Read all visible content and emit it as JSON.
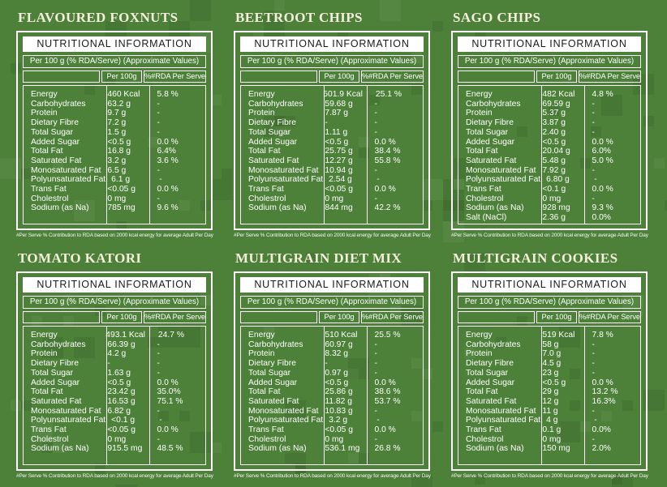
{
  "colors": {
    "background": "#4d8038",
    "panel_border": "#ffffff",
    "header_bg": "#ffffff",
    "header_text": "#1a1a1a",
    "body_text": "#ffffff",
    "title_text": "#f4efdc"
  },
  "shared": {
    "header": "NUTRITIONAL INFORMATION",
    "subheader": "Per 100 g (% RDA/Serve) (Approximate Values)",
    "col_per100g": "Per 100g",
    "col_rda": "%#RDA Per Serve",
    "footnote": "#Per Serve % Contribution to RDA based on 2000 kcal energy for average Adult Per Day"
  },
  "products": [
    {
      "title": "FLAVOURED FOXNUTS",
      "rows": [
        [
          "Energy",
          "460 Kcal",
          "5.8 %"
        ],
        [
          "Carbohydrates",
          "63.2 g",
          "-"
        ],
        [
          "Protein",
          "9.7 g",
          "-"
        ],
        [
          "Dietary Fibre",
          "7.2 g",
          "-"
        ],
        [
          "Total Sugar",
          "1.5 g",
          "-"
        ],
        [
          "Added Sugar",
          "<0.5 g",
          "0.0 %"
        ],
        [
          "Total Fat",
          "16.8 g",
          "6.4%"
        ],
        [
          "Saturated Fat",
          "3.2 g",
          "3.6 %"
        ],
        [
          "Monosaturated Fat",
          "6.5 g",
          "-"
        ],
        [
          "Polyunsaturated Fat",
          "6.1 g",
          "-"
        ],
        [
          "Trans Fat",
          "<0.05 g",
          "0.0 %"
        ],
        [
          "Cholestrol",
          "0 mg",
          "-"
        ],
        [
          "Sodium (as Na)",
          "785 mg",
          "9.6 %"
        ]
      ]
    },
    {
      "title": "BEETROOT CHIPS",
      "rows": [
        [
          "Energy",
          "501.9 Kcal",
          "25.1 %"
        ],
        [
          "Carbohydrates",
          "59.68 g",
          "-"
        ],
        [
          "Protein",
          "7.87 g",
          "-"
        ],
        [
          "Dietary Fibre",
          "-",
          "-"
        ],
        [
          "Total Sugar",
          "1.11 g",
          "-"
        ],
        [
          "Added Sugar",
          "<0.5 g",
          "0.0 %"
        ],
        [
          "Total Fat",
          "25.75 g",
          "38.4 %"
        ],
        [
          "Saturated Fat",
          "12.27 g",
          "55.8 %"
        ],
        [
          "Monosaturated Fat",
          "10.94 g",
          "-"
        ],
        [
          "Polyunsaturated Fat",
          "2.54 g",
          "-"
        ],
        [
          "Trans Fat",
          "<0.05 g",
          "0.0 %"
        ],
        [
          "Cholestrol",
          "0 mg",
          "-"
        ],
        [
          "Sodium (as Na)",
          "844 mg",
          "42.2 %"
        ]
      ]
    },
    {
      "title": "SAGO CHIPS",
      "rows": [
        [
          "Energy",
          "482 Kcal",
          "4.8 %"
        ],
        [
          "Carbohydrates",
          "69.59 g",
          "-"
        ],
        [
          "Protein",
          "5.37 g",
          "-"
        ],
        [
          "Dietary Fibre",
          "3.87 g",
          "-"
        ],
        [
          "Total Sugar",
          "2.40 g",
          "-"
        ],
        [
          "Added Sugar",
          "<0.5 g",
          "0.0 %"
        ],
        [
          "Total Fat",
          "20.04 g",
          "6.0%"
        ],
        [
          "Saturated Fat",
          "5.48 g",
          "5.0 %"
        ],
        [
          "Monosaturated Fat",
          "7.92 g",
          "-"
        ],
        [
          "Polyunsaturated Fat",
          "6.80 g",
          "-"
        ],
        [
          "Trans Fat",
          "<0.1 g",
          "0.0 %"
        ],
        [
          "Cholestrol",
          "0 mg",
          "-"
        ],
        [
          "Sodium (as Na)",
          "928 mg",
          "9.3 %"
        ],
        [
          "Salt (NaCl)",
          "2.36 g",
          "0.0%"
        ]
      ]
    },
    {
      "title": "TOMATO KATORI",
      "rows": [
        [
          "Energy",
          "493.1 Kcal",
          "24.7 %"
        ],
        [
          "Carbohydrates",
          "66.39 g",
          "-"
        ],
        [
          "Protein",
          "4.2 g",
          "-"
        ],
        [
          "Dietary Fibre",
          "-",
          "-"
        ],
        [
          "Total Sugar",
          "1.63 g",
          "-"
        ],
        [
          "Added Sugar",
          "<0.5 g",
          "0.0 %"
        ],
        [
          "Total Fat",
          "23.42 g",
          "35.0%"
        ],
        [
          "Saturated Fat",
          "16.53 g",
          "75.1 %"
        ],
        [
          "Monosaturated Fat",
          "6.82 g",
          "-"
        ],
        [
          "Polyunsaturated Fat",
          "<0.1 g",
          "-"
        ],
        [
          "Trans Fat",
          "<0.05 g",
          "0.0 %"
        ],
        [
          "Cholestrol",
          "0 mg",
          "-"
        ],
        [
          "Sodium (as Na)",
          "915.5 mg",
          "48.5 %"
        ]
      ]
    },
    {
      "title": "MULTIGRAIN DIET MIX",
      "rows": [
        [
          "Energy",
          "510 Kcal",
          "25.5 %"
        ],
        [
          "Carbohydrates",
          "60.97 g",
          "-"
        ],
        [
          "Protein",
          "8.32 g",
          "-"
        ],
        [
          "Dietary Fibre",
          "-",
          "-"
        ],
        [
          "Total Sugar",
          "0.97 g",
          "-"
        ],
        [
          "Added Sugar",
          "<0.5 g",
          "0.0 %"
        ],
        [
          "Total Fat",
          "25.86 g",
          "38.6 %"
        ],
        [
          "Saturated Fat",
          "11.82 g",
          "53.7 %"
        ],
        [
          "Monosaturated Fat",
          "10.83 g",
          "-"
        ],
        [
          "Polyunsaturated Fat",
          "3.2 g",
          "-"
        ],
        [
          "Trans Fat",
          "<0.05 g",
          "0.0 %"
        ],
        [
          "Cholestrol",
          "0 mg",
          "-"
        ],
        [
          "Sodium (as Na)",
          "536.1 mg",
          "26.8 %"
        ]
      ]
    },
    {
      "title": "MULTIGRAIN COOKIES",
      "rows": [
        [
          "Energy",
          "519 Kcal",
          "7.8 %"
        ],
        [
          "Carbohydrates",
          "58 g",
          "-"
        ],
        [
          "Protein",
          "7.0 g",
          "-"
        ],
        [
          "Dietary Fibre",
          "4.5 g",
          "-"
        ],
        [
          "Total Sugar",
          "23 g",
          "-"
        ],
        [
          "Added Sugar",
          "<0.5 g",
          "0.0 %"
        ],
        [
          "Total Fat",
          "29 g",
          "13.2 %"
        ],
        [
          "Saturated Fat",
          "12 g",
          "16.3%"
        ],
        [
          "Monosaturated Fat",
          "11 g",
          "-"
        ],
        [
          "Polyunsaturated Fat",
          "4 g",
          "-"
        ],
        [
          "Trans Fat",
          "0.1 g",
          "0.0%"
        ],
        [
          "Cholestrol",
          "0 mg",
          "-"
        ],
        [
          "Sodium (as Na)",
          "150 mg",
          "2.0%"
        ]
      ]
    }
  ]
}
